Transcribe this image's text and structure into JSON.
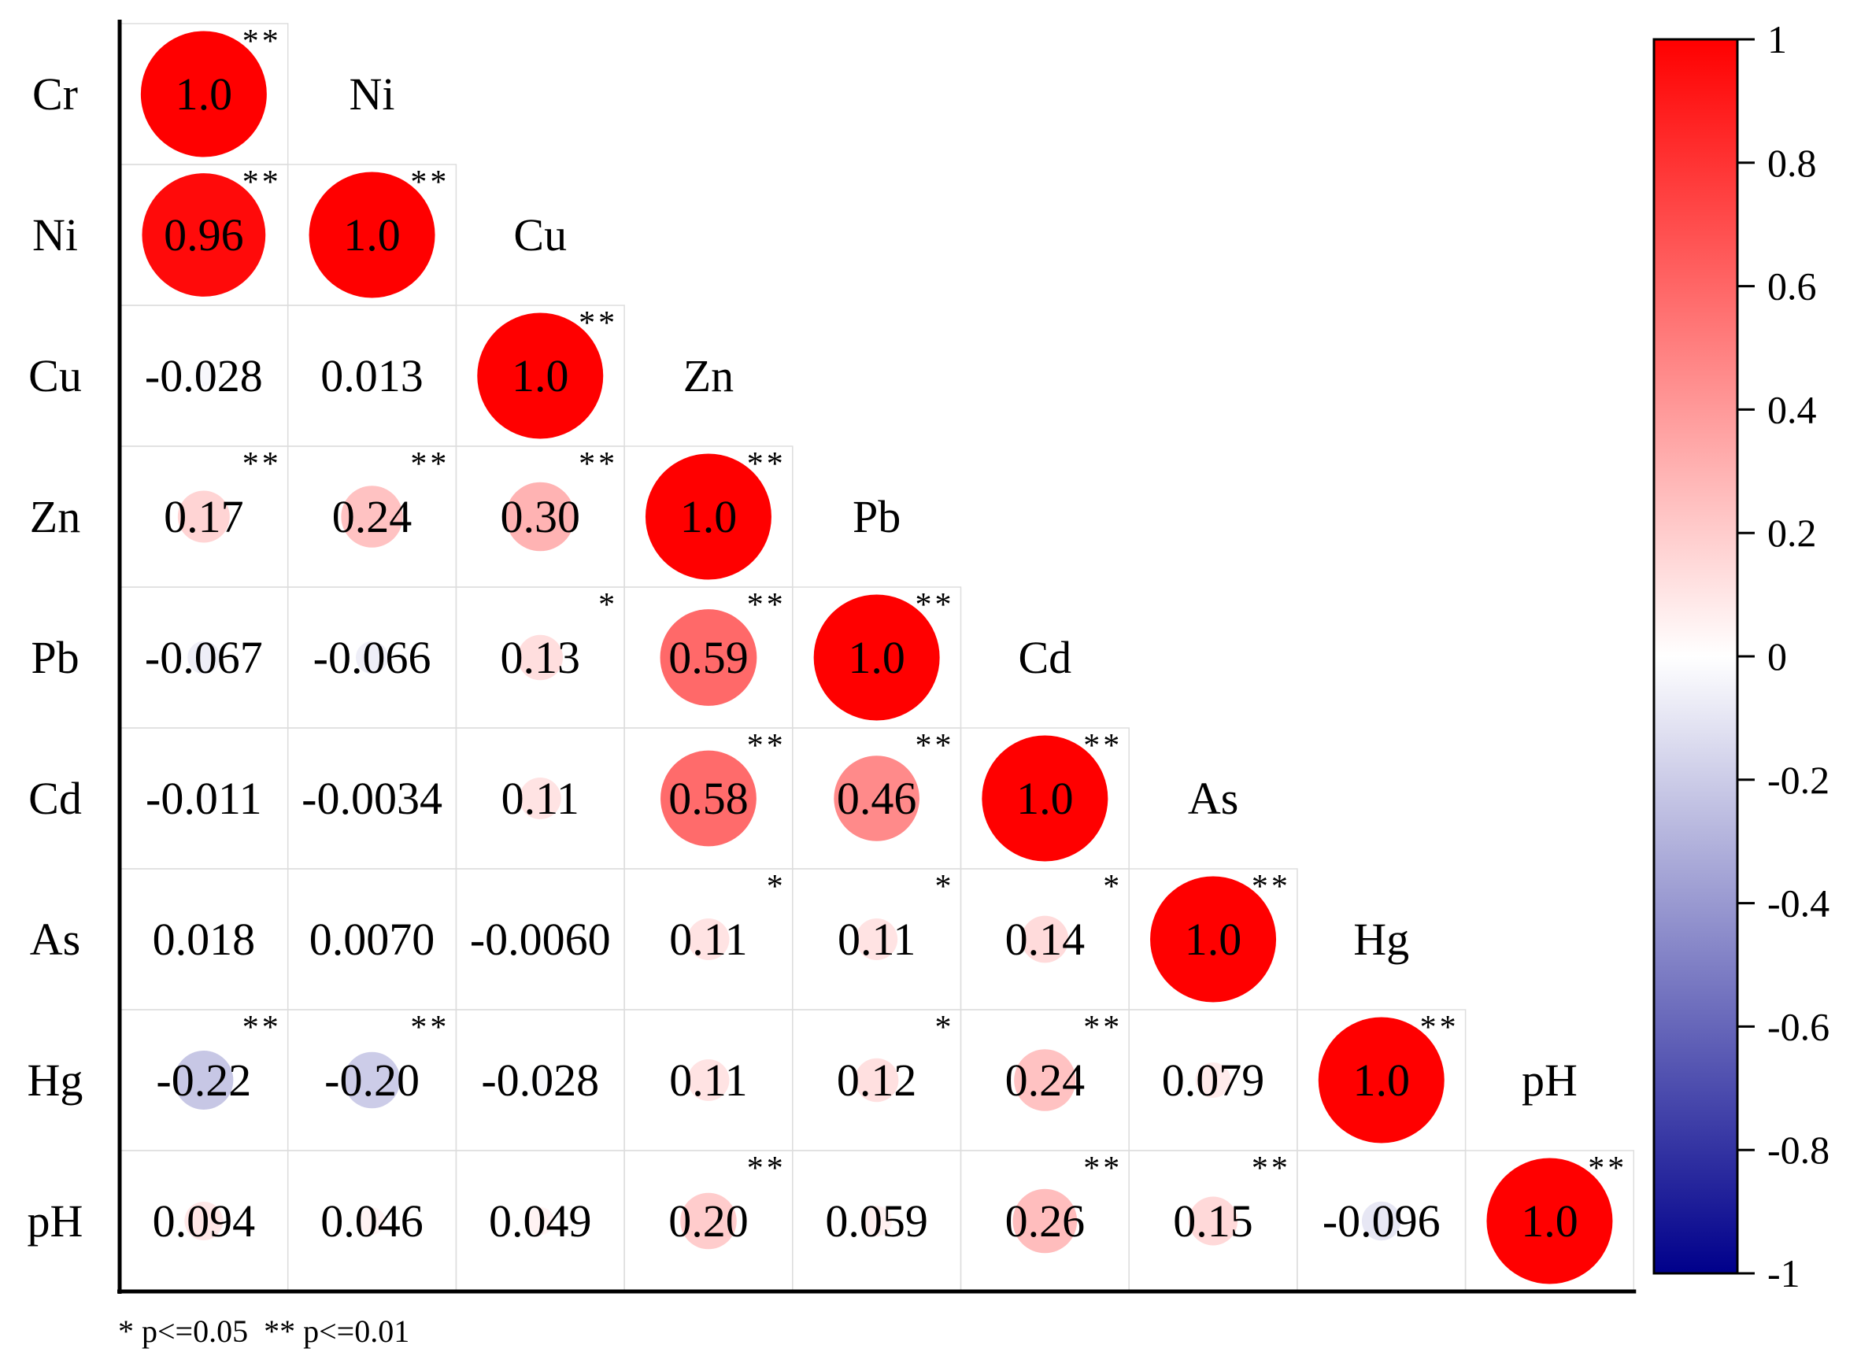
{
  "chart_data": {
    "type": "heatmap",
    "variables": [
      "Cr",
      "Ni",
      "Cu",
      "Zn",
      "Pb",
      "Cd",
      "As",
      "Hg",
      "pH"
    ],
    "matrix": [
      [
        "1.0"
      ],
      [
        "0.96",
        "1.0"
      ],
      [
        "-0.028",
        "0.013",
        "1.0"
      ],
      [
        "0.17",
        "0.24",
        "0.30",
        "1.0"
      ],
      [
        "-0.067",
        "-0.066",
        "0.13",
        "0.59",
        "1.0"
      ],
      [
        "-0.011",
        "-0.0034",
        "0.11",
        "0.58",
        "0.46",
        "1.0"
      ],
      [
        "0.018",
        "0.0070",
        "-0.0060",
        "0.11",
        "0.11",
        "0.14",
        "1.0"
      ],
      [
        "-0.22",
        "-0.20",
        "-0.028",
        "0.11",
        "0.12",
        "0.24",
        "0.079",
        "1.0"
      ],
      [
        "0.094",
        "0.046",
        "0.049",
        "0.20",
        "0.059",
        "0.26",
        "0.15",
        "-0.096",
        "1.0"
      ]
    ],
    "significance": [
      [
        "**"
      ],
      [
        "**",
        "**"
      ],
      [
        "",
        "",
        "**"
      ],
      [
        "**",
        "**",
        "**",
        "**"
      ],
      [
        "",
        "",
        "*",
        "**",
        "**"
      ],
      [
        "",
        "",
        "",
        "**",
        "**",
        "**"
      ],
      [
        "",
        "",
        "",
        "*",
        "*",
        "*",
        "**"
      ],
      [
        "**",
        "**",
        "",
        "",
        "*",
        "**",
        "",
        "**"
      ],
      [
        "",
        "",
        "",
        "**",
        "",
        "**",
        "**",
        "",
        "**"
      ]
    ],
    "colorbar": {
      "ticks": [
        "1",
        "0.8",
        "0.6",
        "0.4",
        "0.2",
        "0",
        "-0.2",
        "-0.4",
        "-0.6",
        "-0.8",
        "-1"
      ],
      "range": [
        -1,
        1
      ],
      "colors": {
        "positive": "#ff0000",
        "zero": "#ffffff",
        "negative": "#00008b"
      }
    },
    "note": "* p<=0.05  ** p<=0.01"
  }
}
